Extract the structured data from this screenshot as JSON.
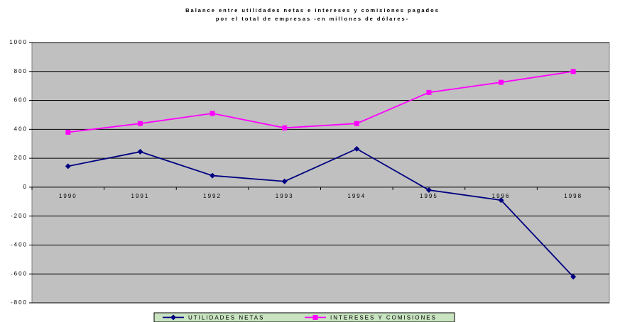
{
  "chart_data": {
    "type": "line",
    "title": [
      "Balance entre utilidades netas e intereses y comisiones pagados",
      "por el total de empresas -en millones de dólares-"
    ],
    "categories": [
      "1990",
      "1991",
      "1992",
      "1993",
      "1994",
      "1995",
      "1996",
      "1998"
    ],
    "series": [
      {
        "name": "UTILIDADES NETAS",
        "color": "#000080",
        "marker": "diamond",
        "values": [
          145,
          245,
          80,
          40,
          265,
          -20,
          -90,
          -620
        ]
      },
      {
        "name": "INTERESES Y COMISIONES",
        "color": "#ff00ff",
        "marker": "square",
        "values": [
          380,
          440,
          510,
          410,
          440,
          655,
          725,
          800
        ]
      }
    ],
    "ylim": [
      -800,
      1000
    ],
    "yticks": [
      -800,
      -600,
      -400,
      -200,
      0,
      200,
      400,
      600,
      800,
      1000
    ],
    "grid": true,
    "plot_background": "#c0c0c0",
    "legend": "bottom",
    "legend_background": "#c8e4c0"
  }
}
